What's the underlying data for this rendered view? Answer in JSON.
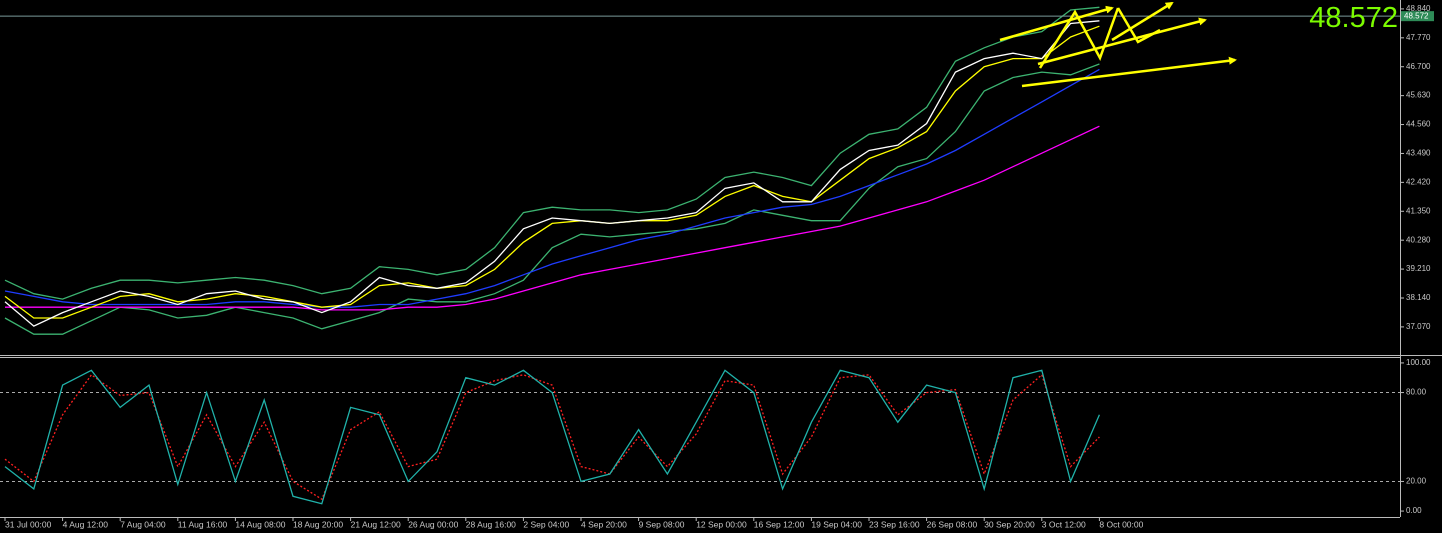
{
  "chart_data": [
    {
      "type": "line",
      "categories": [
        "31 Jul 00:00",
        null,
        "4 Aug 12:00",
        null,
        "7 Aug 04:00",
        null,
        "11 Aug 16:00",
        null,
        "14 Aug 08:00",
        null,
        "18 Aug 20:00",
        null,
        "21 Aug 12:00",
        null,
        "26 Aug 00:00",
        null,
        "28 Aug 16:00",
        null,
        "2 Sep 04:00",
        null,
        "4 Sep 20:00",
        null,
        "9 Sep 08:00",
        null,
        "12 Sep 00:00",
        null,
        "16 Sep 12:00",
        null,
        "19 Sep 04:00",
        null,
        "23 Sep 16:00",
        null,
        "26 Sep 08:00",
        null,
        "30 Sep 20:00",
        null,
        "3 Oct 12:00",
        null,
        "8 Oct 00:00"
      ],
      "series": [
        {
          "color": "#3cb371",
          "values": [
            38.8,
            38.3,
            38.1,
            38.5,
            38.8,
            38.8,
            38.7,
            38.8,
            38.9,
            38.8,
            38.6,
            38.3,
            38.5,
            39.3,
            39.2,
            39.0,
            39.2,
            40.0,
            41.3,
            41.5,
            41.4,
            41.4,
            41.3,
            41.4,
            41.8,
            42.6,
            42.8,
            42.6,
            42.3,
            43.5,
            44.2,
            44.4,
            45.2,
            46.9,
            47.4,
            47.8,
            48.0,
            48.8,
            48.9
          ]
        },
        {
          "color": "#3cb371",
          "values": [
            37.4,
            36.8,
            36.8,
            37.3,
            37.8,
            37.7,
            37.4,
            37.5,
            37.8,
            37.6,
            37.4,
            37.0,
            37.3,
            37.6,
            38.1,
            38.0,
            38.0,
            38.3,
            38.8,
            40.0,
            40.5,
            40.4,
            40.5,
            40.6,
            40.7,
            40.9,
            41.4,
            41.2,
            41.0,
            41.0,
            42.2,
            43.0,
            43.3,
            44.3,
            45.8,
            46.3,
            46.5,
            46.4,
            46.8
          ]
        },
        {
          "color": "#ff00ff",
          "values": [
            37.8,
            37.8,
            37.8,
            37.8,
            37.8,
            37.8,
            37.8,
            37.8,
            37.8,
            37.8,
            37.8,
            37.7,
            37.7,
            37.7,
            37.8,
            37.8,
            37.9,
            38.1,
            38.4,
            38.7,
            39.0,
            39.2,
            39.4,
            39.6,
            39.8,
            40.0,
            40.2,
            40.4,
            40.6,
            40.8,
            41.1,
            41.4,
            41.7,
            42.1,
            42.5,
            43.0,
            43.5,
            44.0,
            44.5
          ]
        },
        {
          "color": "#1f3cff",
          "values": [
            38.4,
            38.2,
            38.0,
            37.9,
            37.9,
            37.9,
            37.9,
            37.9,
            38.0,
            38.0,
            37.9,
            37.8,
            37.8,
            37.9,
            37.9,
            38.1,
            38.3,
            38.6,
            39.0,
            39.4,
            39.7,
            40.0,
            40.3,
            40.5,
            40.8,
            41.1,
            41.3,
            41.5,
            41.6,
            41.9,
            42.3,
            42.7,
            43.1,
            43.6,
            44.2,
            44.8,
            45.4,
            46.0,
            46.6
          ]
        },
        {
          "color": "#ffff00",
          "values": [
            38.2,
            37.4,
            37.4,
            37.8,
            38.2,
            38.3,
            38.0,
            38.1,
            38.3,
            38.2,
            38.0,
            37.8,
            37.9,
            38.6,
            38.7,
            38.5,
            38.6,
            39.2,
            40.2,
            40.9,
            41.0,
            40.9,
            41.0,
            41.0,
            41.2,
            41.9,
            42.3,
            41.9,
            41.7,
            42.5,
            43.3,
            43.7,
            44.3,
            45.8,
            46.7,
            47.0,
            47.0,
            47.8,
            48.2
          ]
        },
        {
          "color": "#ffffff",
          "values": [
            38.0,
            37.1,
            37.6,
            38.0,
            38.4,
            38.2,
            37.9,
            38.3,
            38.4,
            38.1,
            38.0,
            37.6,
            38.0,
            38.9,
            38.6,
            38.5,
            38.7,
            39.5,
            40.7,
            41.1,
            41.0,
            40.9,
            41.0,
            41.1,
            41.3,
            42.2,
            42.4,
            41.7,
            41.7,
            42.9,
            43.6,
            43.8,
            44.6,
            46.5,
            47.0,
            47.2,
            47.0,
            48.3,
            48.4
          ]
        }
      ],
      "ylim": [
        36.03,
        49.17
      ],
      "yticks": [
        {
          "value": 48.84,
          "label": "48.840"
        },
        {
          "value": 47.77,
          "label": "47.770"
        },
        {
          "value": 46.7,
          "label": "46.700"
        },
        {
          "value": 45.63,
          "label": "45.630"
        },
        {
          "value": 44.56,
          "label": "44.560"
        },
        {
          "value": 43.49,
          "label": "43.490"
        },
        {
          "value": 42.42,
          "label": "42.420"
        },
        {
          "value": 41.35,
          "label": "41.350"
        },
        {
          "value": 40.28,
          "label": "40.280"
        },
        {
          "value": 39.21,
          "label": "39.210"
        },
        {
          "value": 38.14,
          "label": "38.140"
        },
        {
          "value": 37.07,
          "label": "37.070"
        }
      ],
      "current_price": {
        "value": 48.572,
        "label": "48.572"
      }
    },
    {
      "type": "line",
      "series": [
        {
          "color": "#ff2020",
          "style": "dashed",
          "values": [
            35,
            20,
            65,
            92,
            78,
            80,
            30,
            65,
            30,
            60,
            20,
            8,
            55,
            67,
            30,
            35,
            80,
            88,
            92,
            85,
            30,
            25,
            50,
            30,
            52,
            88,
            85,
            25,
            50,
            90,
            92,
            65,
            80,
            82,
            25,
            75,
            92,
            30,
            50
          ]
        },
        {
          "color": "#20b2aa",
          "values": [
            30,
            15,
            85,
            95,
            70,
            85,
            18,
            80,
            20,
            75,
            10,
            5,
            70,
            65,
            20,
            40,
            90,
            85,
            95,
            80,
            20,
            25,
            55,
            25,
            60,
            95,
            80,
            15,
            60,
            95,
            90,
            60,
            85,
            80,
            15,
            90,
            95,
            20,
            65
          ]
        }
      ],
      "ylim": [
        -4,
        104
      ],
      "yticks": [
        {
          "value": 100,
          "label": "100.00"
        },
        {
          "value": 80,
          "label": "80.00"
        },
        {
          "value": 20,
          "label": "20.00"
        },
        {
          "value": 0,
          "label": "0.00"
        }
      ],
      "levels": [
        80,
        20
      ]
    }
  ]
}
